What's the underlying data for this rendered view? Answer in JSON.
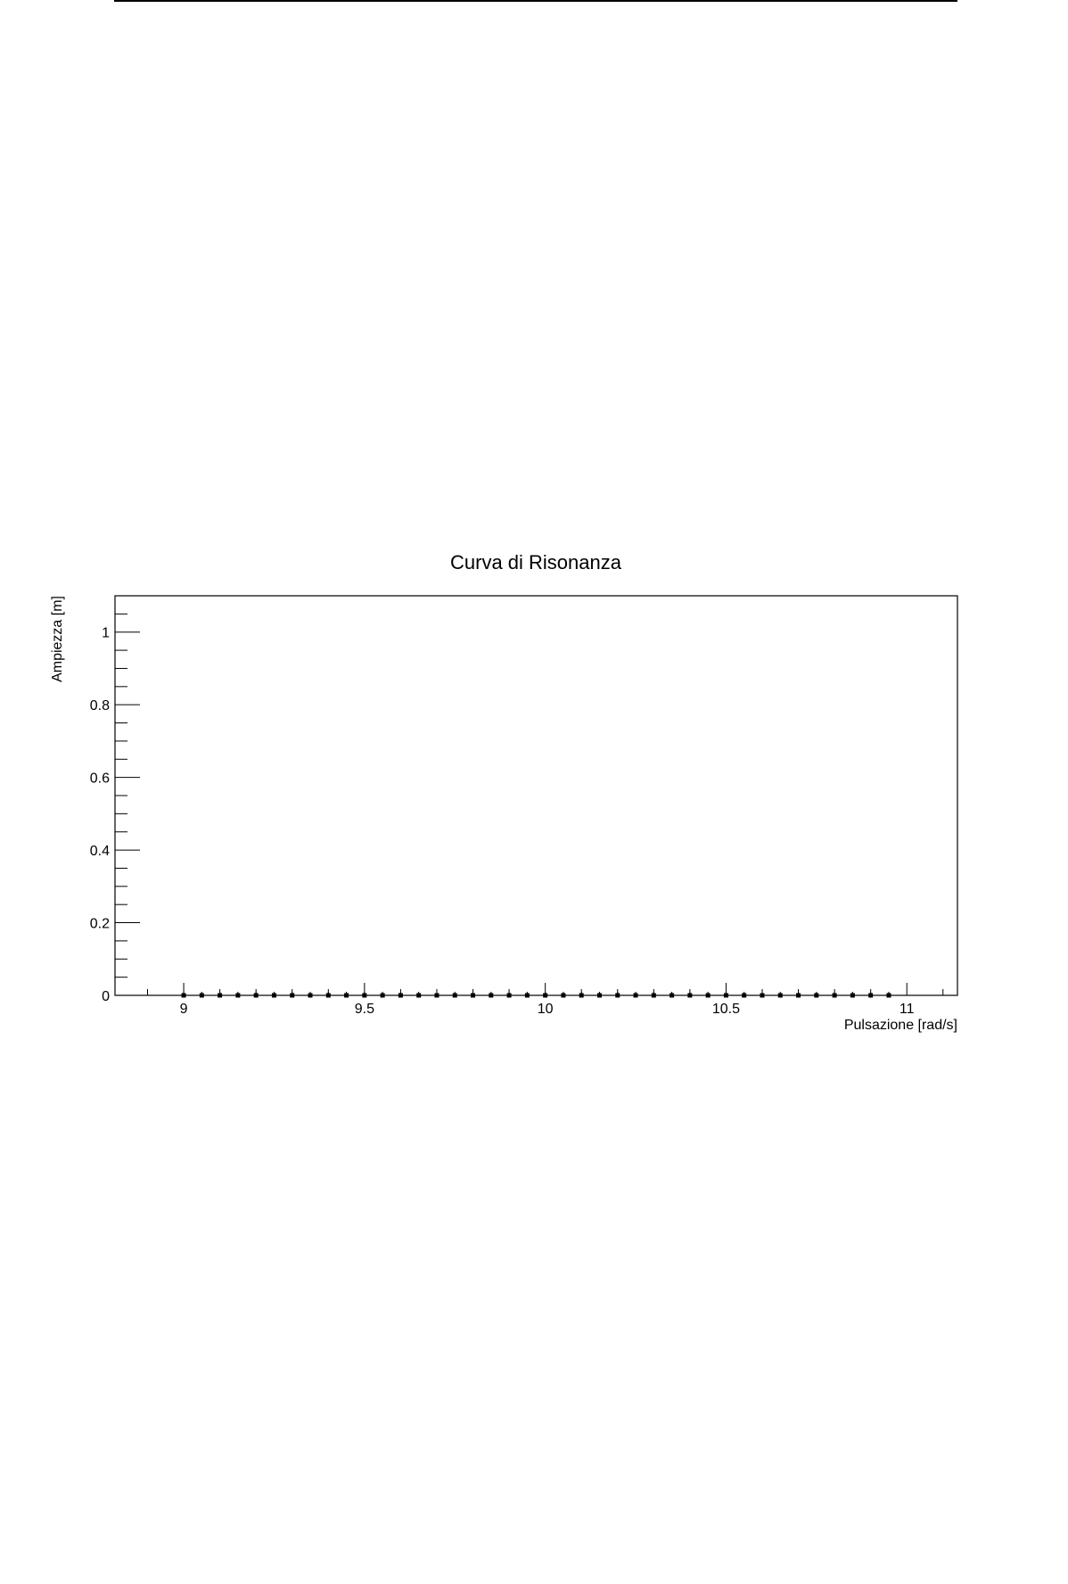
{
  "chart_data": {
    "type": "scatter",
    "title": "Curva di Risonanza",
    "xlabel": "Pulsazione [rad/s]",
    "ylabel": "Ampiezza [m]",
    "xlim": [
      8.81,
      11.14
    ],
    "ylim": [
      0,
      1.1
    ],
    "x_ticks": [
      9,
      9.5,
      10,
      10.5,
      11
    ],
    "x_tick_labels": [
      "9",
      "9.5",
      "10",
      "10.5",
      "11"
    ],
    "y_ticks": [
      0,
      0.2,
      0.4,
      0.6,
      0.8,
      1
    ],
    "y_tick_labels": [
      "0",
      "0.2",
      "0.4",
      "0.6",
      "0.8",
      "1"
    ],
    "grid": false,
    "series": [
      {
        "marker": "square",
        "color": "#000000",
        "x": [
          9.0,
          9.05,
          9.1,
          9.15,
          9.2,
          9.25,
          9.3,
          9.35,
          9.4,
          9.45,
          9.5,
          9.55,
          9.6,
          9.65,
          9.7,
          9.75,
          9.8,
          9.85,
          9.9,
          9.95,
          10.0,
          10.05,
          10.1,
          10.15,
          10.2,
          10.25,
          10.3,
          10.35,
          10.4,
          10.45,
          10.5,
          10.55,
          10.6,
          10.65,
          10.7,
          10.75,
          10.8,
          10.85,
          10.9,
          10.95
        ],
        "y": [
          0,
          0,
          0,
          0,
          0,
          0,
          0,
          0,
          0,
          0,
          0,
          0,
          0,
          0,
          0,
          0,
          0,
          0,
          0,
          0,
          0,
          0,
          0,
          0,
          0,
          0,
          0,
          0,
          0,
          0,
          0,
          0,
          0,
          0,
          0,
          0,
          0,
          0,
          0,
          0
        ]
      }
    ]
  }
}
